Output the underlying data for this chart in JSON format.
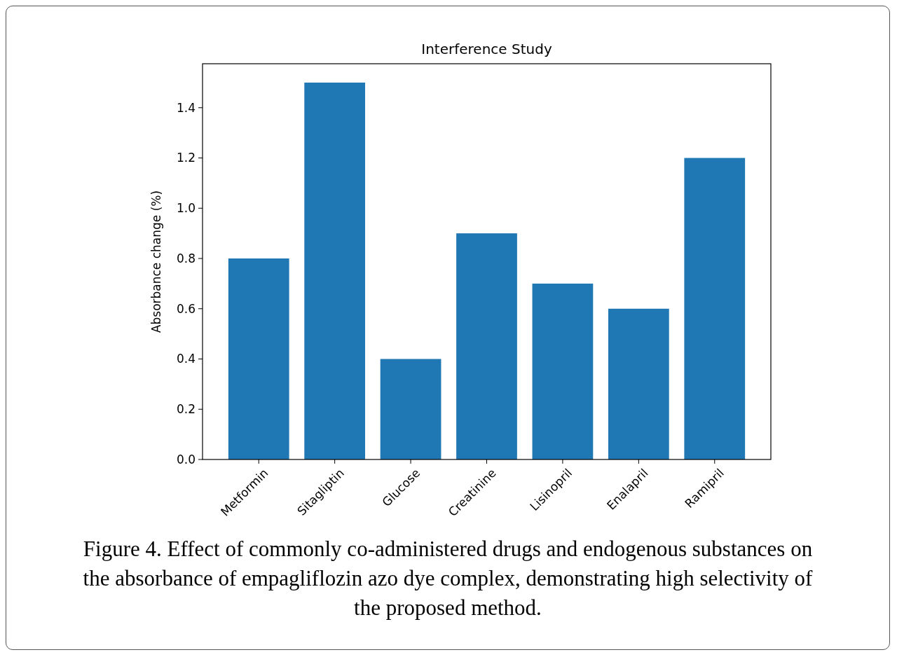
{
  "chart_data": {
    "type": "bar",
    "title": "Interference Study",
    "ylabel": "Absorbance change (%)",
    "categories": [
      "Metformin",
      "Sitagliptin",
      "Glucose",
      "Creatinine",
      "Lisinopril",
      "Enalapril",
      "Ramipril"
    ],
    "values": [
      0.8,
      1.5,
      0.4,
      0.9,
      0.7,
      0.6,
      1.2
    ],
    "color": "#1f77b4",
    "ylim": [
      0,
      1.575
    ],
    "yticks": [
      {
        "value": 0,
        "label": "0.0"
      },
      {
        "value": 0.2,
        "label": "0.2"
      },
      {
        "value": 0.4,
        "label": "0.4"
      },
      {
        "value": 0.6,
        "label": "0.6"
      },
      {
        "value": 0.8,
        "label": "0.8"
      },
      {
        "value": 1,
        "label": "1.0"
      },
      {
        "value": 1.2,
        "label": "1.2"
      },
      {
        "value": 1.4,
        "label": "1.4"
      }
    ],
    "grid": false,
    "annotations": [
      "Figure 4. Effect of commonly co-administered drugs and endogenous substances on the absorbance of empagliflozin azo dye complex, demonstrating high selectivity of the proposed method."
    ]
  }
}
